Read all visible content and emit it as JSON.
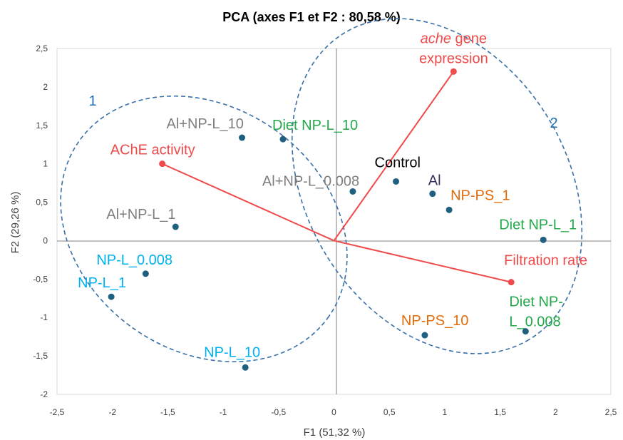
{
  "chart_data": {
    "type": "scatter",
    "title": "PCA (axes F1 et F2 : 80,58 %)",
    "xlabel": "F1 (51,32 %)",
    "ylabel": "F2 (29,26 %)",
    "xlim": [
      -2.5,
      2.5
    ],
    "ylim": [
      -2,
      2.5
    ],
    "x_ticks": [
      {
        "v": -2.5,
        "label": "-2,5"
      },
      {
        "v": -2,
        "label": "-2"
      },
      {
        "v": -1.5,
        "label": "-1,5"
      },
      {
        "v": -1,
        "label": "-1"
      },
      {
        "v": -0.5,
        "label": "-0,5"
      },
      {
        "v": 0,
        "label": "0"
      },
      {
        "v": 0.5,
        "label": "0,5"
      },
      {
        "v": 1,
        "label": "1"
      },
      {
        "v": 1.5,
        "label": "1,5"
      },
      {
        "v": 2,
        "label": "2"
      },
      {
        "v": 2.5,
        "label": "2,5"
      }
    ],
    "y_ticks": [
      {
        "v": 2.5,
        "label": "2,5"
      },
      {
        "v": 2,
        "label": "2"
      },
      {
        "v": 1.5,
        "label": "1,5"
      },
      {
        "v": 1,
        "label": "1"
      },
      {
        "v": 0.5,
        "label": "0,5"
      },
      {
        "v": 0,
        "label": "0"
      },
      {
        "v": -0.5,
        "label": "-0,5"
      },
      {
        "v": -1,
        "label": "-1"
      },
      {
        "v": -1.5,
        "label": "-1,5"
      },
      {
        "v": -2,
        "label": "-2"
      }
    ],
    "grid": false,
    "observations": [
      {
        "label": "Al+NP-L_10",
        "x": -0.83,
        "y": 1.34,
        "color": "#7f7f7f"
      },
      {
        "label": "Diet NP-L_10",
        "x": -0.46,
        "y": 1.32,
        "color": "#22a84a"
      },
      {
        "label": "Al+NP-L_0.008",
        "x": 0.17,
        "y": 0.64,
        "color": "#7f7f7f"
      },
      {
        "label": "Control",
        "x": 0.56,
        "y": 0.77,
        "color": "#000000"
      },
      {
        "label": "Al",
        "x": 0.89,
        "y": 0.61,
        "color": "#3b3160"
      },
      {
        "label": "NP-PS_1",
        "x": 1.04,
        "y": 0.4,
        "color": "#e36c0a"
      },
      {
        "label": "Diet NP-L_1",
        "x": 1.89,
        "y": 0.01,
        "color": "#22a84a"
      },
      {
        "label": "Al+NP-L_1",
        "x": -1.43,
        "y": 0.18,
        "color": "#7f7f7f"
      },
      {
        "label": "NP-L_0.008",
        "x": -1.7,
        "y": -0.43,
        "color": "#00b0f0"
      },
      {
        "label": "NP-L_1",
        "x": -2.01,
        "y": -0.73,
        "color": "#00b0f0"
      },
      {
        "label": "NP-PS_10",
        "x": 0.82,
        "y": -1.23,
        "color": "#e36c0a"
      },
      {
        "label": "Diet NP-\nL_0.008",
        "x": 1.73,
        "y": -1.18,
        "color": "#22a84a"
      },
      {
        "label": "NP-L_10",
        "x": -0.8,
        "y": -1.65,
        "color": "#00b0f0"
      }
    ],
    "variables": [
      {
        "label": "ache gene\nexpression",
        "x": 1.08,
        "y": 2.2,
        "italic_part": "ache"
      },
      {
        "label": "AChE activity",
        "x": -1.55,
        "y": 1.0
      },
      {
        "label": "Filtration rate",
        "x": 1.6,
        "y": -0.54
      }
    ],
    "clusters": [
      {
        "label": "1"
      },
      {
        "label": "2"
      }
    ],
    "colors": {
      "point": "#1f5f7f",
      "variable": "#f04a4a",
      "cluster": "#1f6fb4",
      "axis": "#808080"
    }
  }
}
